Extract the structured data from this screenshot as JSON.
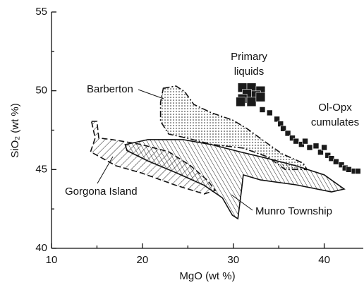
{
  "chart_data": {
    "type": "scatter",
    "x_label": "MgO (wt %)",
    "y_label": "SiO₂ (wt %)",
    "xlim": [
      10,
      44.3
    ],
    "ylim": [
      40,
      55
    ],
    "xticks": [
      10,
      20,
      30,
      40
    ],
    "yticks": [
      40,
      45,
      50,
      55
    ],
    "xminorticks": [
      15,
      25,
      35
    ],
    "yminorticks": [
      42.5,
      47.5,
      52.5
    ],
    "color": "#1a1a1a",
    "series": [
      {
        "x": [
          31,
          32,
          33,
          31.5,
          32.5,
          31,
          32,
          30.8,
          33
        ],
        "y": [
          50.2,
          50.2,
          50.0,
          49.8,
          49.7,
          49.5,
          49.3,
          49.3,
          49.6
        ]
      },
      {
        "x": [
          33.2,
          34.0,
          34.8,
          35.2,
          35.5,
          36,
          36.5,
          36.9,
          37.5,
          37.9,
          38.4,
          39.1,
          39.6,
          40,
          40.4,
          40.8,
          41.3,
          41.9,
          42.3,
          42.7,
          43.3,
          43.7
        ],
        "y": [
          48.8,
          48.6,
          48.2,
          47.9,
          47.6,
          47.3,
          47.0,
          46.8,
          46.6,
          46.8,
          46.4,
          46.5,
          46.1,
          46.4,
          45.9,
          45.7,
          45.5,
          45.3,
          45.1,
          45.0,
          44.9,
          44.9
        ]
      }
    ],
    "fields": [
      {
        "name": "Barberton",
        "x": [
          22.3,
          23.7,
          24.65,
          25.66,
          27.6,
          29.9,
          31.5,
          33.4,
          35.35,
          37.7,
          38.1,
          35.7,
          33.8,
          31.1,
          27.6,
          24.9,
          22.9,
          22.0,
          22.0
        ],
        "y": [
          50.16,
          50.3,
          49.94,
          49.13,
          48.6,
          48.15,
          47.6,
          46.8,
          46.0,
          45.4,
          45.0,
          45.0,
          45.8,
          46.36,
          46.6,
          47.0,
          47.25,
          48.06,
          49.27
        ]
      },
      {
        "name": "Gorgona Island",
        "x": [
          14.4,
          15.0,
          15.2,
          16.7,
          19.8,
          22.9,
          25.3,
          27.2,
          28.0,
          26.8,
          23.7,
          19.8,
          17.1,
          14.3,
          14.8
        ],
        "y": [
          48.06,
          48.06,
          47.0,
          46.9,
          46.6,
          46.13,
          45.24,
          44.3,
          43.67,
          43.45,
          44.0,
          44.8,
          45.24,
          46.13,
          47.0
        ]
      },
      {
        "name": "Munro Township",
        "x": [
          18.1,
          20.6,
          24.5,
          27.6,
          30.7,
          33.8,
          36.9,
          40.0,
          42.2,
          40.8,
          36.9,
          33.0,
          31.1,
          30.9,
          30.5,
          29.9,
          28.8,
          26.8,
          23.7,
          20.6,
          18.3
        ],
        "y": [
          46.58,
          46.9,
          46.9,
          46.58,
          46.13,
          45.7,
          45.24,
          44.66,
          43.76,
          43.58,
          44.03,
          44.34,
          44.66,
          43.67,
          41.88,
          42.1,
          43.2,
          44.0,
          44.8,
          45.55,
          46.2
        ]
      }
    ],
    "annotations": [
      [
        "Primary",
        "liquids"
      ],
      [
        "Ol-Opx",
        "cumulates"
      ]
    ]
  }
}
